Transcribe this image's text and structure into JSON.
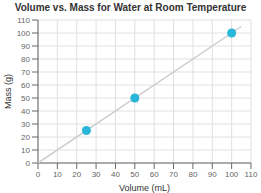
{
  "chart_data": {
    "type": "scatter",
    "title": "Volume vs. Mass for Water at Room Temperature",
    "xlabel": "Volume (mL)",
    "ylabel": "Mass (g)",
    "xlim": [
      0,
      110
    ],
    "ylim": [
      0,
      110
    ],
    "xticks": [
      0,
      10,
      20,
      30,
      40,
      50,
      60,
      70,
      80,
      90,
      100,
      110
    ],
    "yticks": [
      0,
      10,
      20,
      30,
      40,
      50,
      60,
      70,
      80,
      90,
      100,
      110
    ],
    "grid": true,
    "series": [
      {
        "type": "line",
        "color": "#c8cdd2",
        "line_style": "solid",
        "x": [
          0,
          105
        ],
        "values": [
          0,
          105
        ]
      },
      {
        "type": "scatter",
        "color": "#29b6d8",
        "x": [
          25,
          50,
          100
        ],
        "values": [
          25,
          50,
          100
        ]
      }
    ]
  }
}
